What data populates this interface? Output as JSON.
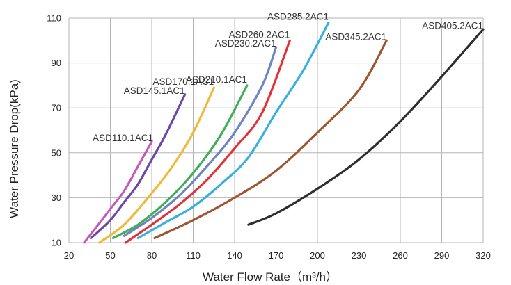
{
  "chart_data": {
    "type": "line",
    "title": "",
    "xlabel": "Water Flow Rate（m³/h）",
    "ylabel": "Water Pressure Drop(kPa)",
    "xlim": [
      20,
      320
    ],
    "ylim": [
      10,
      110
    ],
    "xticks": [
      "20",
      "50",
      "80",
      "110",
      "140",
      "170",
      "200",
      "230",
      "260",
      "290",
      "320"
    ],
    "yticks": [
      "10",
      "30",
      "50",
      "70",
      "90",
      "110"
    ],
    "grid": "vertical",
    "series": [
      {
        "name": "ASD110.1AC1",
        "color": "#c459b6",
        "label_anchor": [
          81,
          54
        ],
        "points": [
          [
            31,
            10
          ],
          [
            40,
            17
          ],
          [
            50,
            25
          ],
          [
            60,
            33
          ],
          [
            70,
            44
          ],
          [
            80,
            55
          ]
        ]
      },
      {
        "name": "ASD145.1AC1",
        "color": "#6a48a3",
        "label_anchor": [
          104,
          75
        ],
        "points": [
          [
            36,
            12
          ],
          [
            50,
            20
          ],
          [
            60,
            28
          ],
          [
            70,
            36
          ],
          [
            80,
            47
          ],
          [
            90,
            58
          ],
          [
            104,
            76
          ]
        ]
      },
      {
        "name": "ASD170.1AC1",
        "color": "#f0b93c",
        "label_anchor": [
          125,
          79
        ],
        "points": [
          [
            42,
            10
          ],
          [
            60,
            18
          ],
          [
            80,
            32
          ],
          [
            95,
            44
          ],
          [
            110,
            59
          ],
          [
            125,
            79
          ]
        ]
      },
      {
        "name": "ASD210.1AC1",
        "color": "#3fae57",
        "label_anchor": [
          149,
          80
        ],
        "points": [
          [
            52,
            12
          ],
          [
            70,
            18
          ],
          [
            90,
            28
          ],
          [
            110,
            41
          ],
          [
            130,
            58
          ],
          [
            149,
            80
          ]
        ]
      },
      {
        "name": "ASD230.2AC1",
        "color": "#6d83c2",
        "label_anchor": [
          170,
          96
        ],
        "points": [
          [
            60,
            13
          ],
          [
            80,
            21
          ],
          [
            100,
            31
          ],
          [
            120,
            44
          ],
          [
            140,
            59
          ],
          [
            160,
            80
          ],
          [
            170,
            97
          ]
        ]
      },
      {
        "name": "ASD260.2AC1",
        "color": "#e53136",
        "label_anchor": [
          180,
          100
        ],
        "points": [
          [
            61,
            10
          ],
          [
            80,
            18
          ],
          [
            100,
            27
          ],
          [
            120,
            38
          ],
          [
            140,
            52
          ],
          [
            160,
            68
          ],
          [
            180,
            100
          ]
        ]
      },
      {
        "name": "ASD285.2AC1",
        "color": "#37afe0",
        "label_anchor": [
          208,
          108
        ],
        "points": [
          [
            70,
            12
          ],
          [
            90,
            19
          ],
          [
            110,
            26
          ],
          [
            130,
            36
          ],
          [
            150,
            48
          ],
          [
            170,
            68
          ],
          [
            190,
            87
          ],
          [
            208,
            108
          ]
        ]
      },
      {
        "name": "ASD345.2AC1",
        "color": "#9e5631",
        "label_anchor": [
          250,
          99
        ],
        "points": [
          [
            82,
            12
          ],
          [
            110,
            20
          ],
          [
            140,
            30
          ],
          [
            170,
            42
          ],
          [
            200,
            59
          ],
          [
            230,
            78
          ],
          [
            250,
            100
          ]
        ]
      },
      {
        "name": "ASD405.2AC1",
        "color": "#2e2e2e",
        "label_anchor": [
          320,
          104
        ],
        "points": [
          [
            150,
            18
          ],
          [
            170,
            23
          ],
          [
            200,
            34
          ],
          [
            230,
            47
          ],
          [
            260,
            64
          ],
          [
            290,
            84
          ],
          [
            320,
            105
          ]
        ]
      }
    ]
  }
}
